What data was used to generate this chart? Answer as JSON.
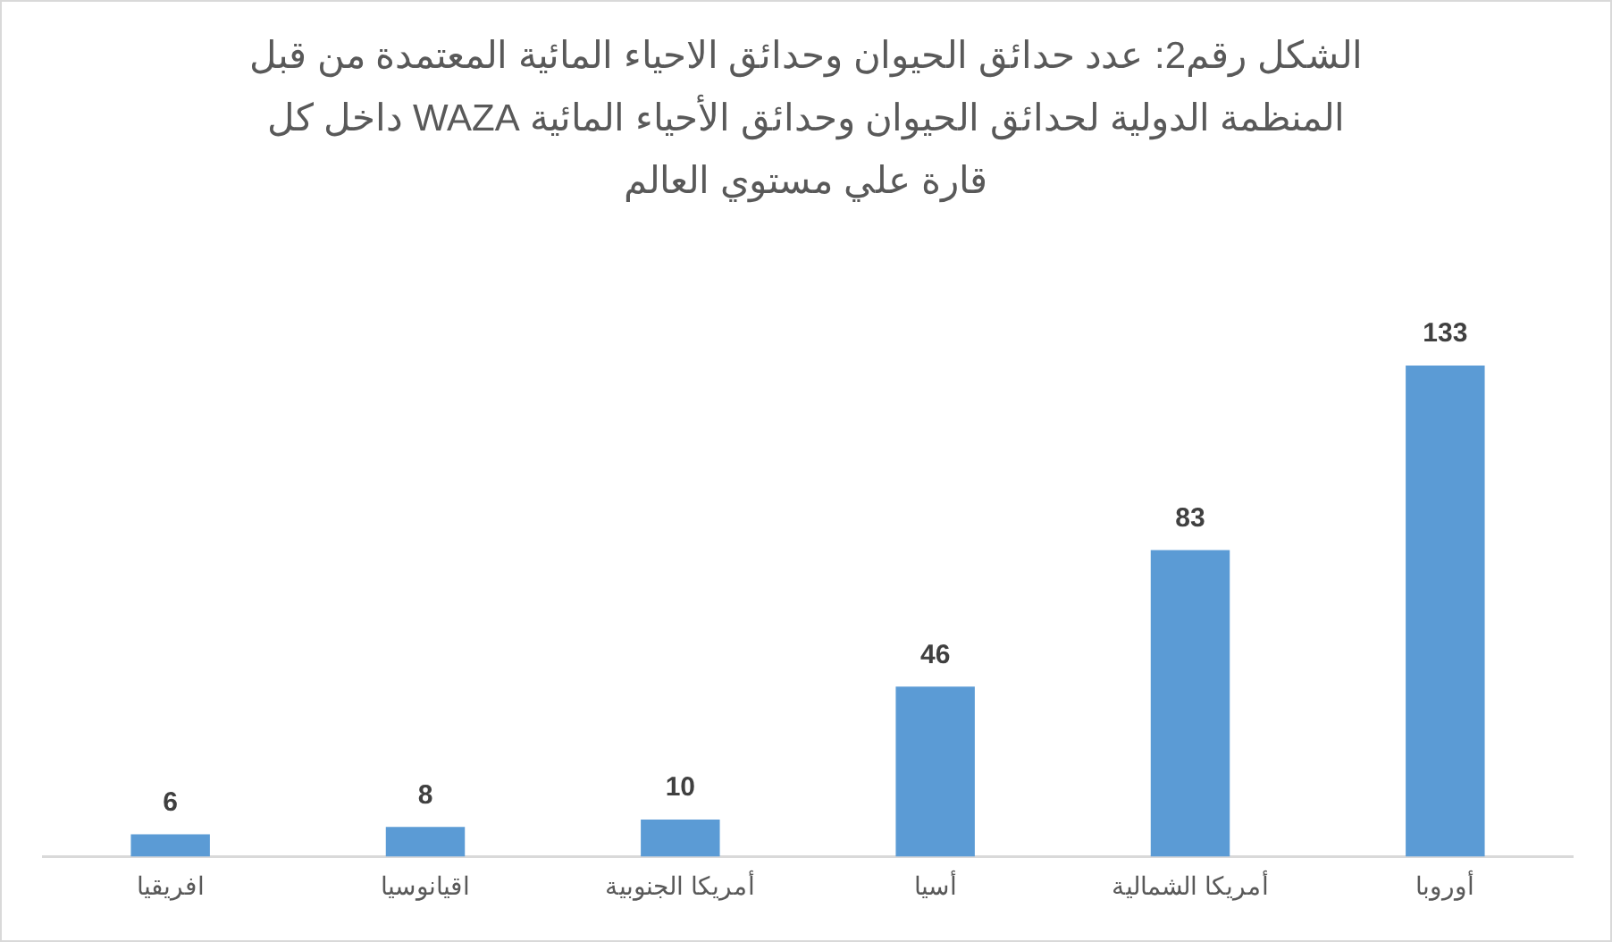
{
  "chart_data": {
    "type": "bar",
    "title": "الشكل رقم2: عدد حدائق الحيوان وحدائق الاحياء المائية المعتمدة من قبل المنظمة الدولية لحدائق الحيوان وحدائق الأحياء المائية WAZA داخل كل قارة علي مستوي العالم",
    "categories": [
      "افريقيا",
      "اقيانوسيا",
      "أمريكا الجنوبية",
      "أسيا",
      "أمريكا الشمالية",
      "أوروبا"
    ],
    "values": [
      6,
      8,
      10,
      46,
      83,
      133
    ],
    "color": "#5b9bd5",
    "data_labels": true,
    "tick_labels": "x"
  }
}
